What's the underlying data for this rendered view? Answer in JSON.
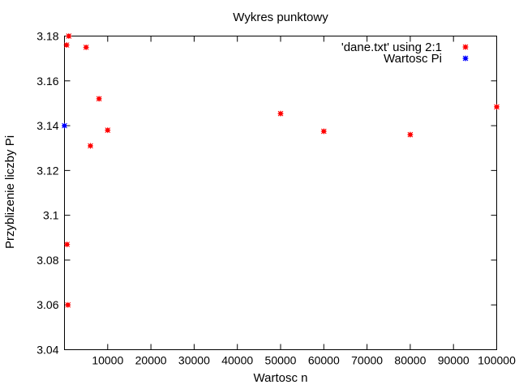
{
  "chart_data": {
    "type": "scatter",
    "title": "Wykres punktowy",
    "xlabel": "Wartosc n",
    "ylabel": "Przyblizenie liczby Pi",
    "xlim": [
      0,
      100000
    ],
    "ylim": [
      3.04,
      3.18
    ],
    "xticks": [
      10000,
      20000,
      30000,
      40000,
      50000,
      60000,
      70000,
      80000,
      90000,
      100000
    ],
    "xtick_labels": [
      "10000",
      "20000",
      "30000",
      "40000",
      "50000",
      "60000",
      "70000",
      "80000",
      "90000",
      "100000"
    ],
    "yticks": [
      3.04,
      3.06,
      3.08,
      3.1,
      3.12,
      3.14,
      3.16,
      3.18
    ],
    "ytick_labels": [
      "3.04",
      "3.06",
      "3.08",
      "3.1",
      "3.12",
      "3.14",
      "3.16",
      "3.18"
    ],
    "grid": false,
    "legend_position": "top-right",
    "series": [
      {
        "name": "'dane.txt' using 2:1",
        "color": "#ff0000",
        "points": [
          {
            "x": 500,
            "y": 3.176
          },
          {
            "x": 1000,
            "y": 3.18
          },
          {
            "x": 600,
            "y": 3.087
          },
          {
            "x": 800,
            "y": 3.06
          },
          {
            "x": 5000,
            "y": 3.175
          },
          {
            "x": 6000,
            "y": 3.131
          },
          {
            "x": 8000,
            "y": 3.152
          },
          {
            "x": 10000,
            "y": 3.138
          },
          {
            "x": 50000,
            "y": 3.1454
          },
          {
            "x": 60000,
            "y": 3.1375
          },
          {
            "x": 80000,
            "y": 3.136
          },
          {
            "x": 100000,
            "y": 3.1484
          }
        ]
      },
      {
        "name": "Wartosc Pi",
        "color": "#0000ff",
        "points": [
          {
            "x": 0,
            "y": 3.14
          }
        ]
      }
    ]
  }
}
